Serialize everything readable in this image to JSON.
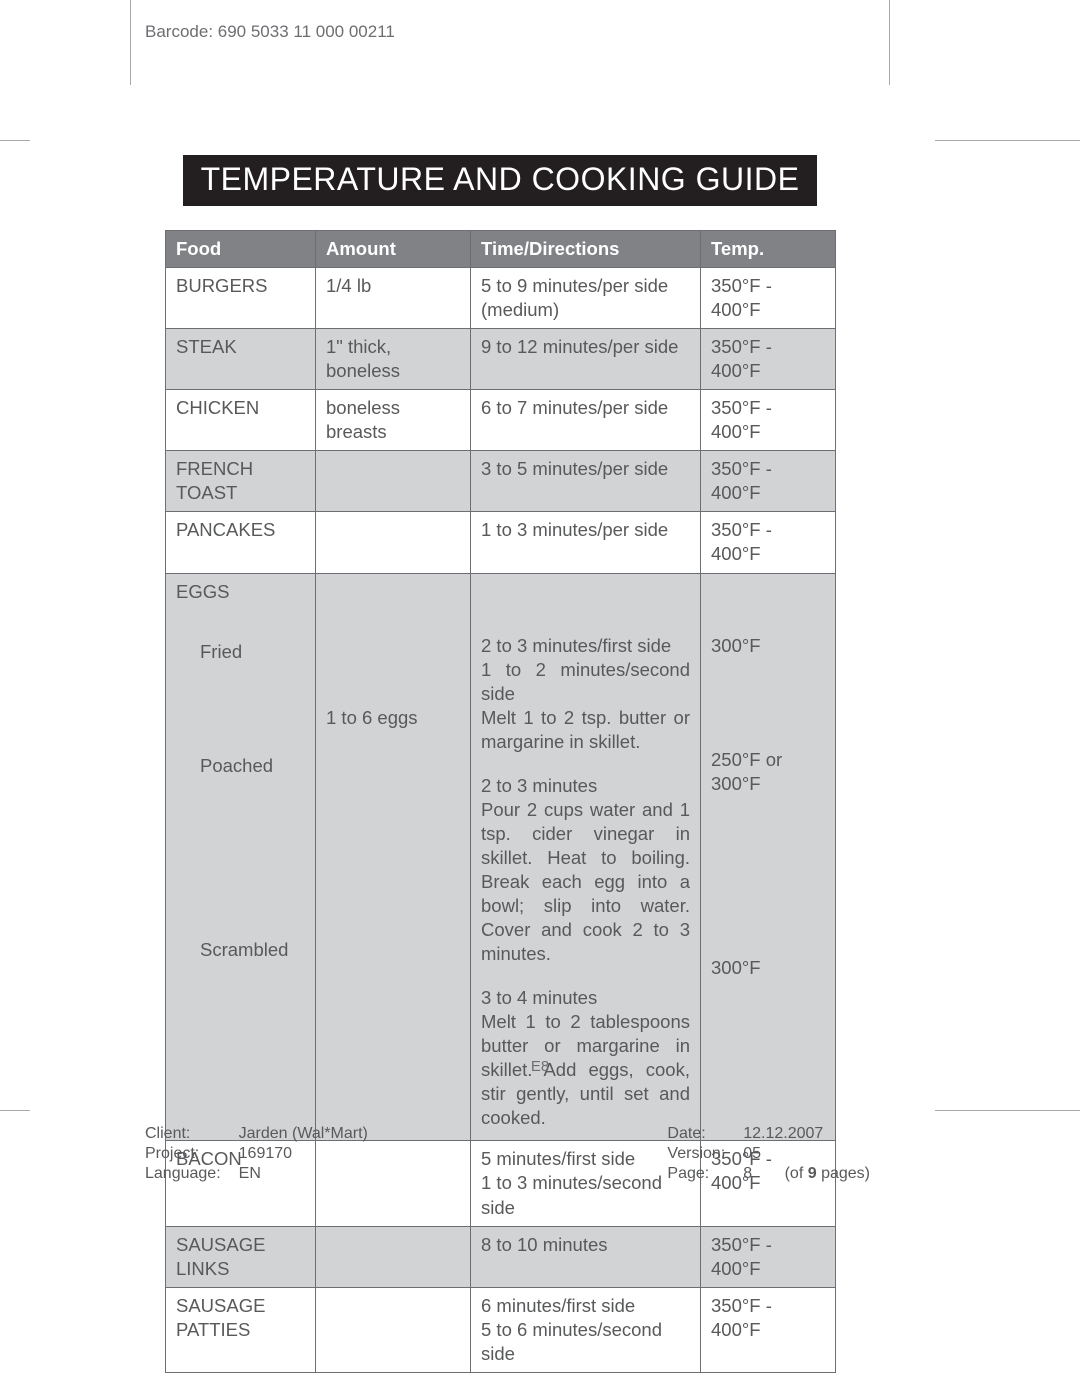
{
  "barcode": "Barcode: 690 5033 11 000 00211",
  "title": "TEMPERATURE AND COOKING GUIDE",
  "columns": [
    "Food",
    "Amount",
    "Time/Directions",
    "Temp."
  ],
  "rows": [
    {
      "food": "BURGERS",
      "amount": "1/4 lb",
      "directions": "5 to 9 minutes/per side (medium)",
      "temp": "350°F - 400°F",
      "shaded": false
    },
    {
      "food": "STEAK",
      "amount": "1\" thick, boneless",
      "directions": "9 to 12 minutes/per side",
      "temp": "350°F - 400°F",
      "shaded": true
    },
    {
      "food": "CHICKEN",
      "amount": "boneless breasts",
      "directions": "6 to 7 minutes/per side",
      "temp": "350°F - 400°F",
      "shaded": false
    },
    {
      "food": "FRENCH TOAST",
      "amount": "",
      "directions": "3 to 5 minutes/per side",
      "temp": "350°F - 400°F",
      "shaded": true
    },
    {
      "food": "PANCAKES",
      "amount": "",
      "directions": "1 to 3 minutes/per side",
      "temp": "350°F - 400°F",
      "shaded": false
    }
  ],
  "eggs": {
    "label": "EGGS",
    "fried": {
      "name": "Fried",
      "amount": "",
      "dir": "2 to 3 minutes/first side\n1 to 2 minutes/second side\nMelt 1 to 2 tsp. butter or margarine in skillet.",
      "temp": "300°F"
    },
    "poached": {
      "name": "Poached",
      "amount": "1 to 6 eggs",
      "dir": "2 to 3 minutes\nPour 2 cups water and 1 tsp. cider vinegar in skillet. Heat to boiling. Break each egg into a bowl; slip into water. Cover and cook 2 to 3 minutes.",
      "temp": "250°F or 300°F"
    },
    "scrambled": {
      "name": "Scrambled",
      "amount": "",
      "dir": "3 to 4 minutes\nMelt 1 to 2 tablespoons butter or margarine in skillet. Add eggs, cook, stir gently, until set and cooked.",
      "temp": "300°F"
    }
  },
  "rows2": [
    {
      "food": "BACON",
      "amount": "",
      "directions": "5 minutes/first side\n1 to 3 minutes/second side",
      "temp": "350°F - 400°F",
      "shaded": false
    },
    {
      "food": "SAUSAGE LINKS",
      "amount": "",
      "directions": "8 to 10 minutes",
      "temp": "350°F - 400°F",
      "shaded": true
    },
    {
      "food": "SAUSAGE PATTIES",
      "amount": "",
      "directions": "6 minutes/first side\n5 to 6 minutes/second side",
      "temp": "350°F - 400°F",
      "shaded": false
    }
  ],
  "page_num": "E8",
  "footer": {
    "client_lbl": "Client:",
    "client": "Jarden (Wal*Mart)",
    "project_lbl": "Project:",
    "project": "169170",
    "lang_lbl": "Language:",
    "lang": "EN",
    "date_lbl": "Date:",
    "date": "12.12.2007",
    "ver_lbl": "Version:",
    "ver": "05",
    "page_lbl": "Page:",
    "page": "8",
    "of_prefix": "(of ",
    "of_n": "9",
    "of_suffix": " pages)"
  },
  "colors": {
    "title_bg": "#231f20",
    "header_bg": "#808285",
    "shaded_bg": "#d1d3d4",
    "border": "#6d6e71",
    "text": "#58595b"
  }
}
